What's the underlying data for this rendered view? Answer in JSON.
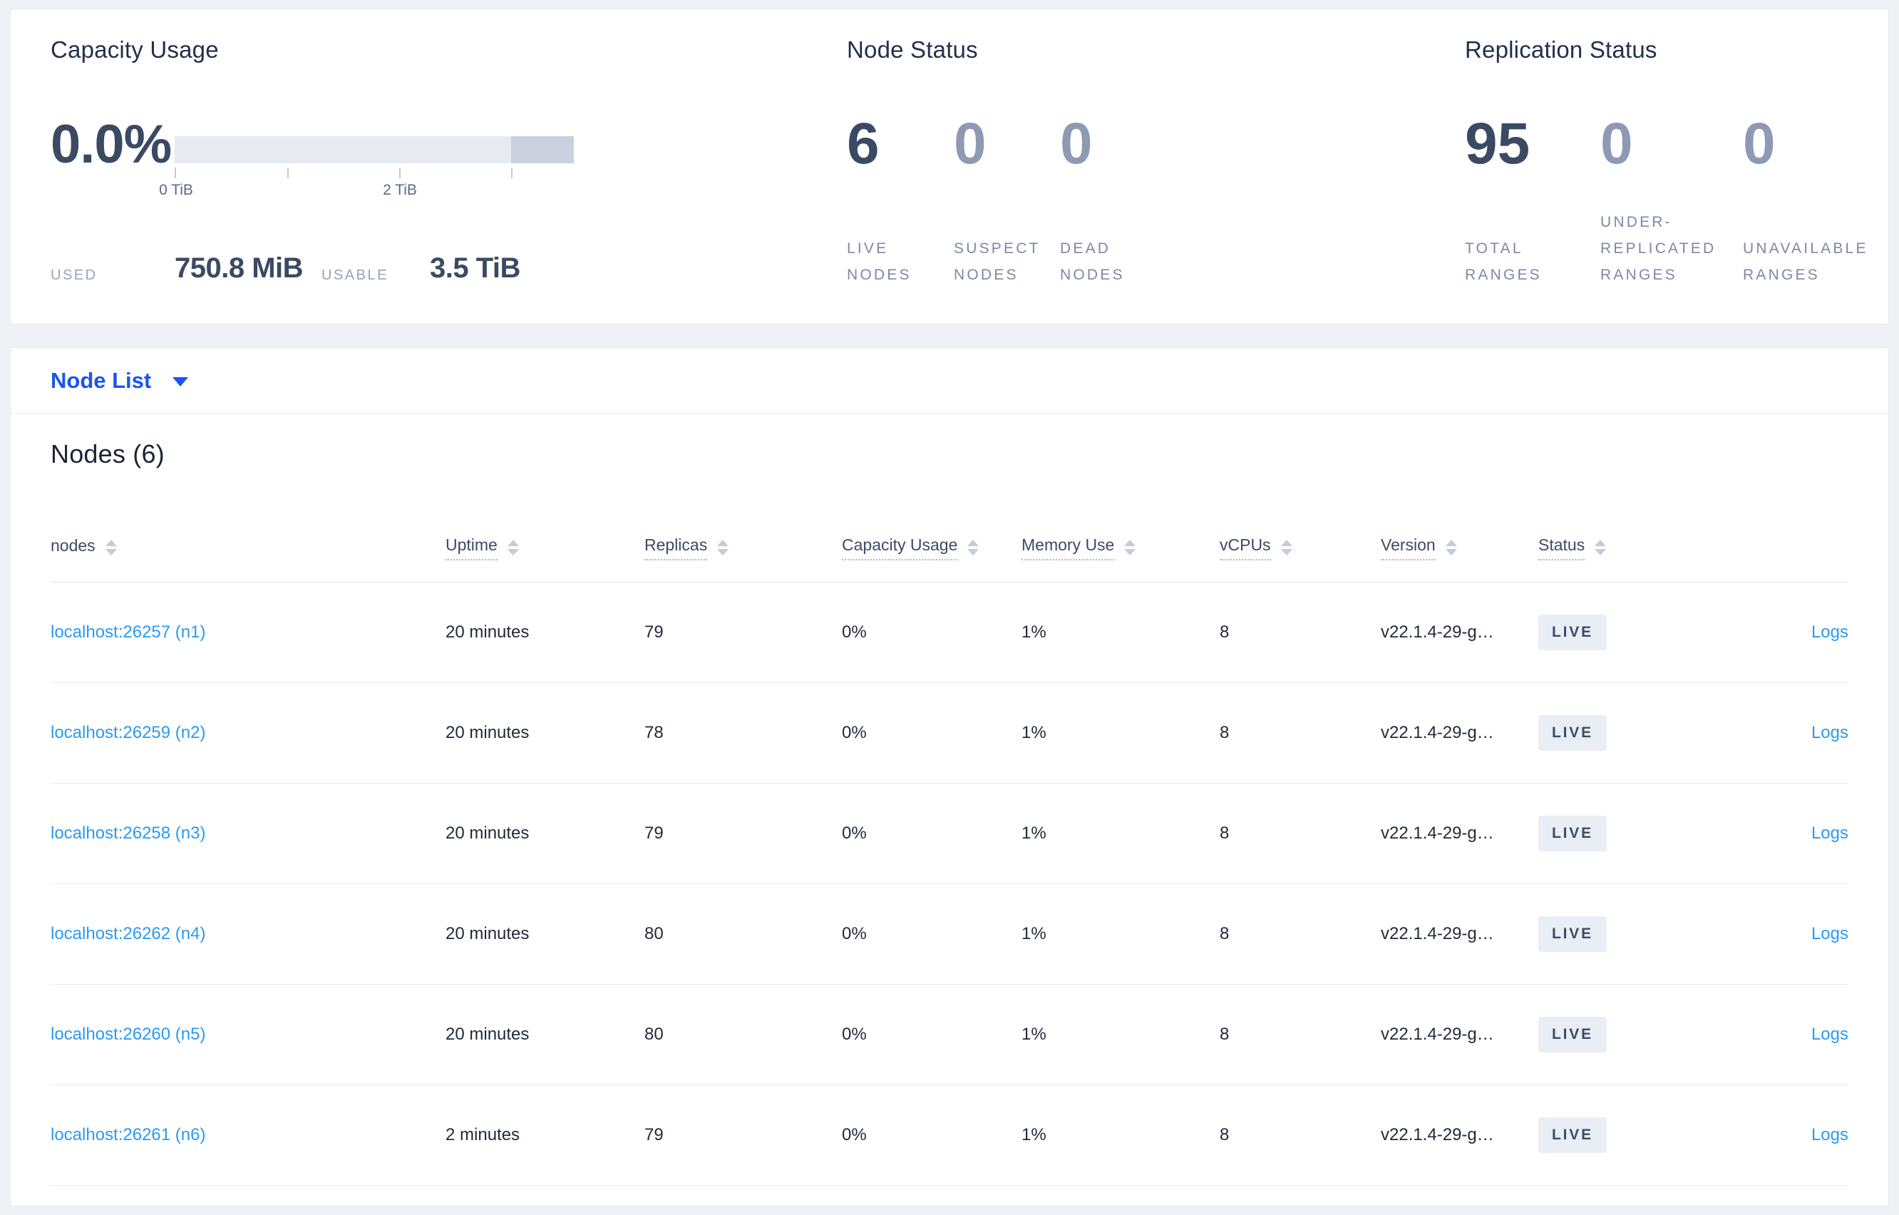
{
  "overview": {
    "capacity": {
      "title": "Capacity Usage",
      "percent_used": "0.0%",
      "axis_ticks": [
        "0 TiB",
        "2 TiB"
      ],
      "used_label": "USED",
      "used_value": "750.8 MiB",
      "usable_label": "USABLE",
      "usable_value": "3.5 TiB"
    },
    "node_status": {
      "title": "Node Status",
      "stats": [
        {
          "value": "6",
          "label_lines": [
            "LIVE",
            "NODES"
          ],
          "emphasized": true
        },
        {
          "value": "0",
          "label_lines": [
            "SUSPECT",
            "NODES"
          ],
          "emphasized": false
        },
        {
          "value": "0",
          "label_lines": [
            "DEAD",
            "NODES"
          ],
          "emphasized": false
        }
      ]
    },
    "replication_status": {
      "title": "Replication Status",
      "stats": [
        {
          "value": "95",
          "label_lines": [
            "TOTAL",
            "RANGES"
          ],
          "emphasized": true
        },
        {
          "value": "0",
          "label_lines": [
            "UNDER-",
            "REPLICATED",
            "RANGES"
          ],
          "emphasized": false
        },
        {
          "value": "0",
          "label_lines": [
            "UNAVAILABLE",
            "RANGES"
          ],
          "emphasized": false
        }
      ]
    }
  },
  "view_selector": {
    "label": "Node List"
  },
  "nodes_table": {
    "title": "Nodes (6)",
    "columns": [
      {
        "label": "nodes",
        "sortable": true,
        "dotted_underline": false
      },
      {
        "label": "Uptime",
        "sortable": true,
        "dotted_underline": true
      },
      {
        "label": "Replicas",
        "sortable": true,
        "dotted_underline": true
      },
      {
        "label": "Capacity Usage",
        "sortable": true,
        "dotted_underline": true
      },
      {
        "label": "Memory Use",
        "sortable": true,
        "dotted_underline": true
      },
      {
        "label": "vCPUs",
        "sortable": true,
        "dotted_underline": true
      },
      {
        "label": "Version",
        "sortable": true,
        "dotted_underline": true
      },
      {
        "label": "Status",
        "sortable": true,
        "dotted_underline": true
      }
    ],
    "logs_column_label": "Logs",
    "rows": [
      {
        "node": "localhost:26257 (n1)",
        "uptime": "20 minutes",
        "replicas": "79",
        "capacity_usage": "0%",
        "memory_use": "1%",
        "vcpus": "8",
        "version": "v22.1.4-29-g…",
        "status": "LIVE"
      },
      {
        "node": "localhost:26259 (n2)",
        "uptime": "20 minutes",
        "replicas": "78",
        "capacity_usage": "0%",
        "memory_use": "1%",
        "vcpus": "8",
        "version": "v22.1.4-29-g…",
        "status": "LIVE"
      },
      {
        "node": "localhost:26258 (n3)",
        "uptime": "20 minutes",
        "replicas": "79",
        "capacity_usage": "0%",
        "memory_use": "1%",
        "vcpus": "8",
        "version": "v22.1.4-29-g…",
        "status": "LIVE"
      },
      {
        "node": "localhost:26262 (n4)",
        "uptime": "20 minutes",
        "replicas": "80",
        "capacity_usage": "0%",
        "memory_use": "1%",
        "vcpus": "8",
        "version": "v22.1.4-29-g…",
        "status": "LIVE"
      },
      {
        "node": "localhost:26260 (n5)",
        "uptime": "20 minutes",
        "replicas": "80",
        "capacity_usage": "0%",
        "memory_use": "1%",
        "vcpus": "8",
        "version": "v22.1.4-29-g…",
        "status": "LIVE"
      },
      {
        "node": "localhost:26261 (n6)",
        "uptime": "2 minutes",
        "replicas": "79",
        "capacity_usage": "0%",
        "memory_use": "1%",
        "vcpus": "8",
        "version": "v22.1.4-29-g…",
        "status": "LIVE"
      }
    ]
  },
  "colors": {
    "selector_link_blue": "#1a54f0",
    "table_link_blue": "#2b9af0",
    "stat_emphasized": "#3b4a63",
    "stat_muted": "#8e9ab3",
    "badge_background": "#e9edf4",
    "page_background": "#eff1f6"
  }
}
